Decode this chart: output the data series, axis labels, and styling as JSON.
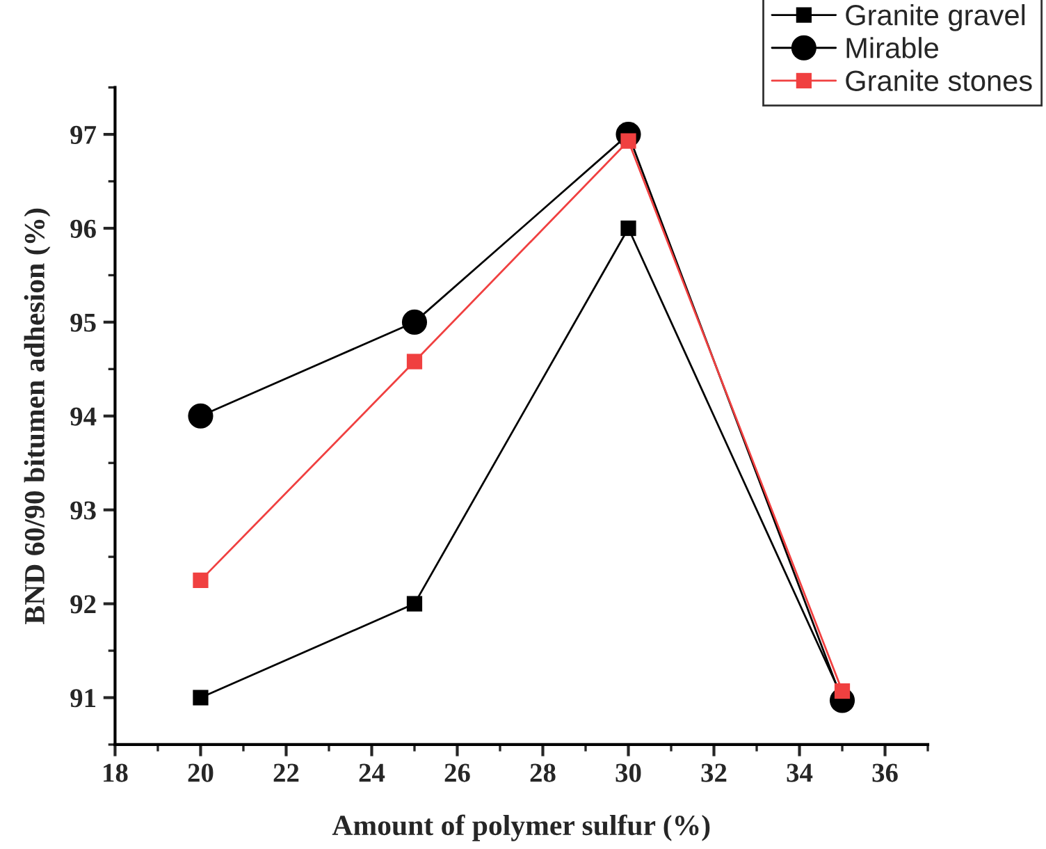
{
  "chart_data": {
    "type": "line",
    "xlabel": "Amount of polymer sulfur (%)",
    "ylabel": "BND 60/90 bitumen adhesion (%)",
    "x": [
      20,
      25,
      30,
      35
    ],
    "series": [
      {
        "name": "Granite gravel",
        "color": "#000000",
        "marker": "square",
        "values": [
          91,
          92,
          96,
          91
        ]
      },
      {
        "name": "Mirable",
        "color": "#000000",
        "marker": "circle",
        "values": [
          94,
          95,
          97,
          90.97
        ]
      },
      {
        "name": "Granite stones",
        "color": "#f04040",
        "marker": "square",
        "values": [
          92.25,
          94.58,
          96.93,
          91.07
        ]
      }
    ],
    "xlim": [
      18,
      37
    ],
    "xticks": [
      18,
      20,
      22,
      24,
      26,
      28,
      30,
      32,
      34,
      36
    ],
    "ylim": [
      90.5,
      97.5
    ],
    "yticks": [
      91,
      92,
      93,
      94,
      95,
      96,
      97
    ],
    "grid": false,
    "legend": "top right",
    "line_style": "solid"
  }
}
